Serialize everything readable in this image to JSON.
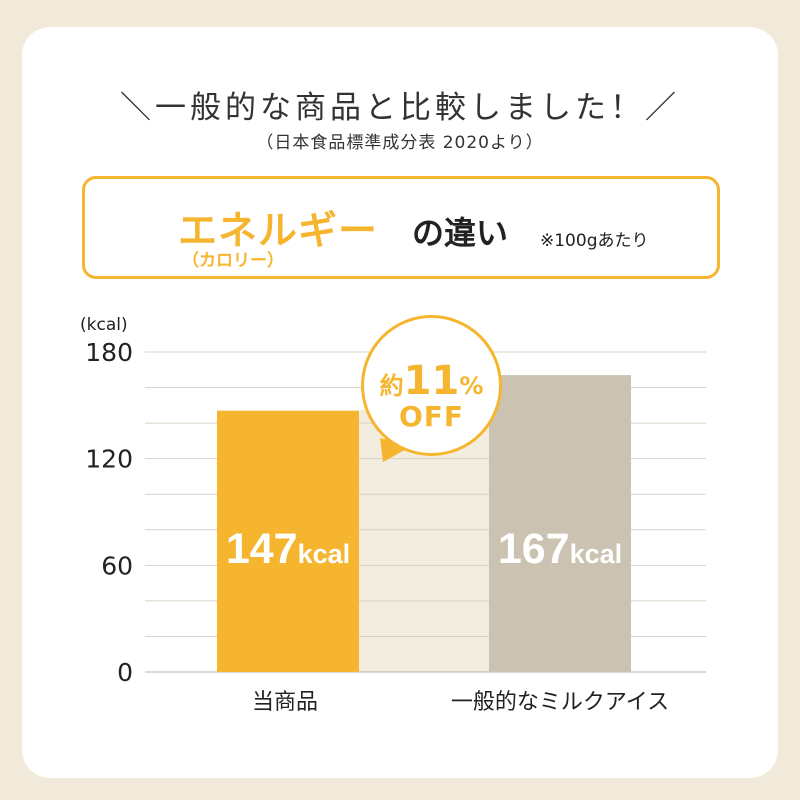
{
  "heading": "＼一般的な商品と比較しました！／",
  "source": "（日本食品標準成分表 2020より）",
  "title": {
    "main": "エネルギー",
    "rest": "の違い",
    "note": "※100gあたり",
    "sub": "（カロリー）"
  },
  "badge": {
    "prefix": "約",
    "number": "11",
    "percent": "%",
    "off": "OFF"
  },
  "colors": {
    "accent": "#f6b52f",
    "compare": "#cbc2b1",
    "band": "#f3ede0",
    "grid": "#d9d3c7"
  },
  "chart_data": {
    "type": "bar",
    "unit_label": "(kcal)",
    "categories": [
      "当商品",
      "一般的なミルクアイス"
    ],
    "values": [
      147,
      167
    ],
    "value_labels": [
      {
        "number": "147",
        "unit": "kcal"
      },
      {
        "number": "167",
        "unit": "kcal"
      }
    ],
    "y_ticks": [
      0,
      60,
      120,
      180
    ],
    "ylim": [
      0,
      180
    ],
    "grid": true
  }
}
